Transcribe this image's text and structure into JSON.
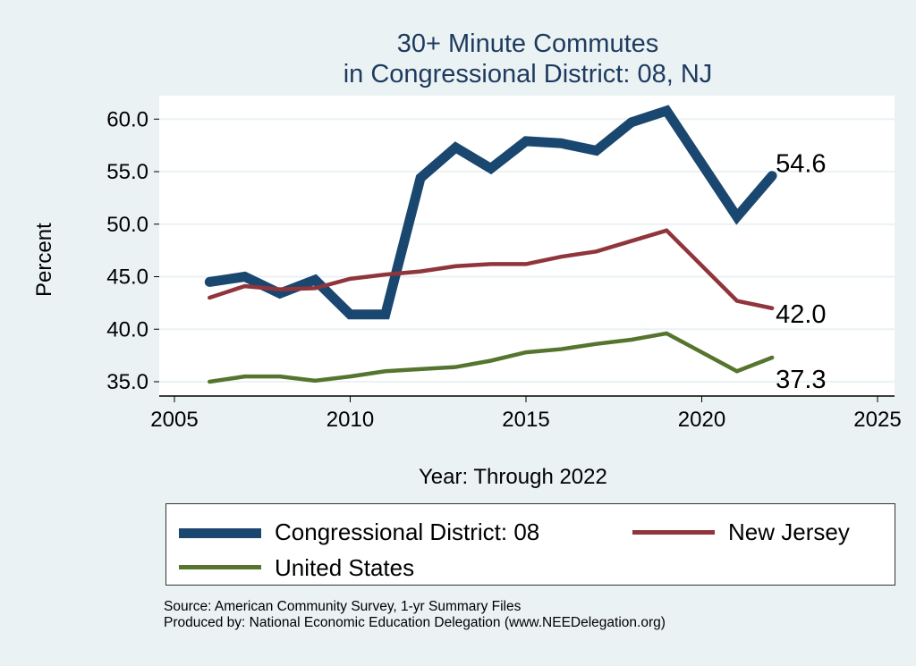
{
  "chart_data": {
    "type": "line",
    "title": "30+ Minute Commutes",
    "subtitle": "in Congressional District:  08, NJ",
    "xlabel": "Year: Through 2022",
    "ylabel": "Percent",
    "xlim": [
      2005,
      2025
    ],
    "ylim": [
      35,
      60
    ],
    "xticks": [
      "2005",
      "2010",
      "2015",
      "2020",
      "2025"
    ],
    "yticks": [
      "35.0",
      "40.0",
      "45.0",
      "50.0",
      "55.0",
      "60.0"
    ],
    "grid": true,
    "legend_position": "bottom",
    "series": [
      {
        "name": "Congressional District:  08",
        "color": "#1a476f",
        "end_label": "54.6",
        "x": [
          2006,
          2007,
          2008,
          2009,
          2010,
          2011,
          2012,
          2013,
          2014,
          2015,
          2016,
          2017,
          2018,
          2019,
          2021,
          2022
        ],
        "values": [
          44.5,
          45.0,
          43.4,
          44.7,
          41.4,
          41.4,
          54.4,
          57.3,
          55.3,
          57.9,
          57.7,
          57.0,
          59.7,
          60.8,
          50.7,
          54.6
        ]
      },
      {
        "name": "New Jersey",
        "color": "#90353b",
        "end_label": "42.0",
        "x": [
          2006,
          2007,
          2008,
          2009,
          2010,
          2011,
          2012,
          2013,
          2014,
          2015,
          2016,
          2017,
          2018,
          2019,
          2021,
          2022
        ],
        "values": [
          43.0,
          44.1,
          43.8,
          43.9,
          44.8,
          45.2,
          45.5,
          46.0,
          46.2,
          46.2,
          46.9,
          47.4,
          48.4,
          49.4,
          42.7,
          42.0
        ]
      },
      {
        "name": "United States",
        "color": "#55752f",
        "end_label": "37.3",
        "x": [
          2006,
          2007,
          2008,
          2009,
          2010,
          2011,
          2012,
          2013,
          2014,
          2015,
          2016,
          2017,
          2018,
          2019,
          2021,
          2022
        ],
        "values": [
          35.0,
          35.5,
          35.5,
          35.1,
          35.5,
          36.0,
          36.2,
          36.4,
          37.0,
          37.8,
          38.1,
          38.6,
          39.0,
          39.6,
          36.0,
          37.3
        ]
      }
    ]
  },
  "source": "Source: American Community Survey, 1-yr Summary Files",
  "produced_by": "Produced by: National Economic Education Delegation (www.NEEDelegation.org)"
}
